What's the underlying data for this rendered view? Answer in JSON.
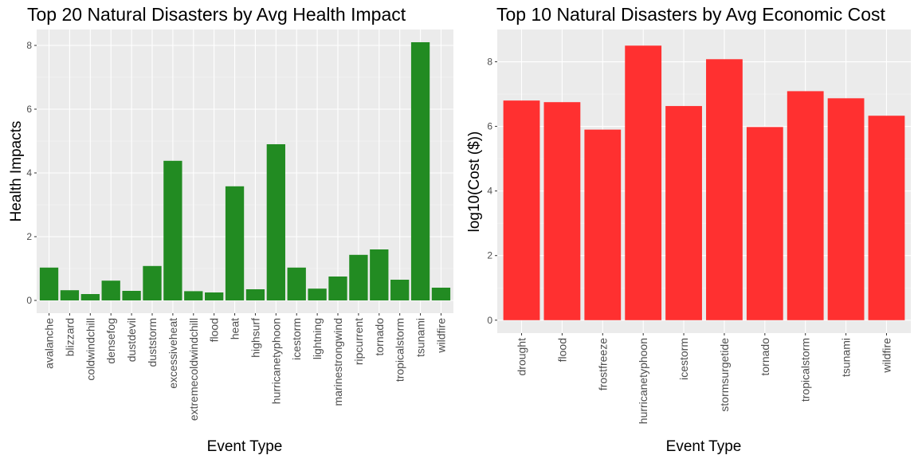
{
  "chart_data": [
    {
      "type": "bar",
      "title": "Top 20 Natural Disasters by Avg Health Impact",
      "xlabel": "Event Type",
      "ylabel": "Health Impacts",
      "categories": [
        "avalanche",
        "blizzard",
        "coldwindchill",
        "densefog",
        "dustdevil",
        "duststorm",
        "excessiveheat",
        "extremecoldwindchill",
        "flood",
        "heat",
        "highsurf",
        "hurricanetyphoon",
        "icestorm",
        "lightning",
        "marinestrongwind",
        "ripcurrent",
        "tornado",
        "tropicalstorm",
        "tsunami",
        "wildfire"
      ],
      "values": [
        1.03,
        0.32,
        0.2,
        0.62,
        0.3,
        1.08,
        4.38,
        0.29,
        0.25,
        3.58,
        0.35,
        4.9,
        1.03,
        0.37,
        0.75,
        1.43,
        1.6,
        0.65,
        8.1,
        0.4
      ],
      "ylim": [
        -0.4,
        8.5
      ],
      "yticks": [
        0,
        2,
        4,
        6,
        8
      ],
      "color": "#228b22",
      "grid": true
    },
    {
      "type": "bar",
      "title": "Top 10 Natural Disasters by Avg Economic Cost",
      "xlabel": "Event Type",
      "ylabel": "log10(Cost ($))",
      "categories": [
        "drought",
        "flood",
        "frostfreeze",
        "hurricanetyphoon",
        "icestorm",
        "stormsurgetide",
        "tornado",
        "tropicalstorm",
        "tsunami",
        "wildfire"
      ],
      "values": [
        6.8,
        6.75,
        5.9,
        8.5,
        6.63,
        8.08,
        5.98,
        7.09,
        6.87,
        6.33
      ],
      "ylim": [
        -0.4,
        9.0
      ],
      "yticks": [
        0,
        2,
        4,
        6,
        8
      ],
      "color": "#ff3030",
      "grid": true
    }
  ]
}
